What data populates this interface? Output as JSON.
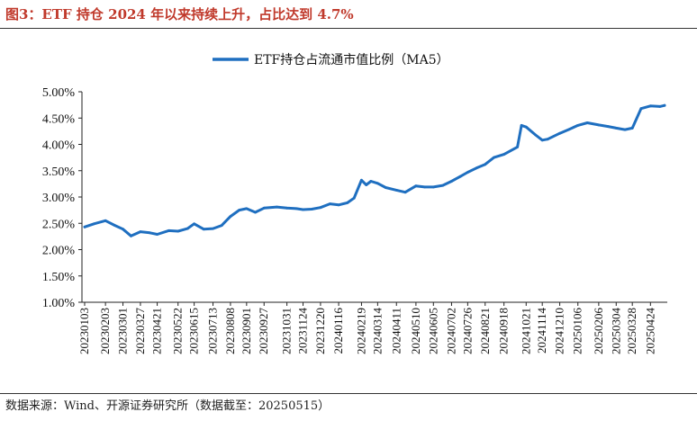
{
  "figure": {
    "title": "图3：ETF 持仓 2024 年以来持续上升，占比达到 4.7%",
    "source": "数据来源：Wind、开源证券研究所（数据截至：20250515）"
  },
  "colors": {
    "title": "#c0392b",
    "line": "#1f6fc0",
    "axis": "#222222",
    "text": "#111111"
  },
  "chart_data": {
    "type": "line",
    "title": "",
    "xlabel": "",
    "ylabel": "",
    "ylim": [
      0.01,
      0.05
    ],
    "y_format": "percent",
    "yticks": [
      "1.00%",
      "1.50%",
      "2.00%",
      "2.50%",
      "3.00%",
      "3.50%",
      "4.00%",
      "4.50%",
      "5.00%"
    ],
    "grid": false,
    "legend_position": "top-center",
    "x_tick_labels": [
      "20230103",
      "20230203",
      "20230301",
      "20230327",
      "20230421",
      "20230522",
      "20230615",
      "20230713",
      "20230808",
      "20230901",
      "20230927",
      "20231031",
      "20231124",
      "20231220",
      "20240116",
      "20240219",
      "20240314",
      "20240411",
      "20240510",
      "20240605",
      "20240702",
      "20240726",
      "20240821",
      "20240918",
      "20241021",
      "20241114",
      "20241210",
      "20250106",
      "20250206",
      "20250304",
      "20250328",
      "20250424"
    ],
    "series": [
      {
        "name": "ETF持仓占流通市值比例（MA5）",
        "x": [
          "20230103",
          "20230117",
          "20230203",
          "20230217",
          "20230301",
          "20230313",
          "20230327",
          "20230410",
          "20230421",
          "20230508",
          "20230522",
          "20230605",
          "20230615",
          "20230629",
          "20230713",
          "20230726",
          "20230808",
          "20230821",
          "20230901",
          "20230914",
          "20230927",
          "20231016",
          "20231031",
          "20231114",
          "20231124",
          "20231207",
          "20231220",
          "20240103",
          "20240116",
          "20240129",
          "20240208",
          "20240219",
          "20240226",
          "20240304",
          "20240314",
          "20240326",
          "20240411",
          "20240424",
          "20240510",
          "20240523",
          "20240605",
          "20240619",
          "20240702",
          "20240715",
          "20240726",
          "20240808",
          "20240821",
          "20240903",
          "20240918",
          "20241008",
          "20241014",
          "20241021",
          "20241104",
          "20241114",
          "20241122",
          "20241210",
          "20241223",
          "20250106",
          "20250120",
          "20250206",
          "20250220",
          "20250304",
          "20250317",
          "20250328",
          "20250410",
          "20250424",
          "20250508",
          "20250515"
        ],
        "values": [
          0.0243,
          0.0249,
          0.0255,
          0.0246,
          0.0239,
          0.0226,
          0.0234,
          0.0232,
          0.0229,
          0.0236,
          0.0235,
          0.024,
          0.0249,
          0.0239,
          0.024,
          0.0246,
          0.0263,
          0.0275,
          0.0278,
          0.0271,
          0.0279,
          0.0281,
          0.0279,
          0.0278,
          0.0276,
          0.0277,
          0.028,
          0.0287,
          0.0285,
          0.0289,
          0.0298,
          0.0332,
          0.0323,
          0.033,
          0.0326,
          0.0318,
          0.0313,
          0.0309,
          0.0321,
          0.0319,
          0.0319,
          0.0322,
          0.033,
          0.0339,
          0.0347,
          0.0355,
          0.0362,
          0.0375,
          0.0381,
          0.0395,
          0.0436,
          0.0433,
          0.0418,
          0.0408,
          0.041,
          0.0421,
          0.0428,
          0.0436,
          0.0441,
          0.0437,
          0.0434,
          0.0431,
          0.0428,
          0.0431,
          0.0468,
          0.0473,
          0.0472,
          0.0474
        ]
      }
    ]
  }
}
